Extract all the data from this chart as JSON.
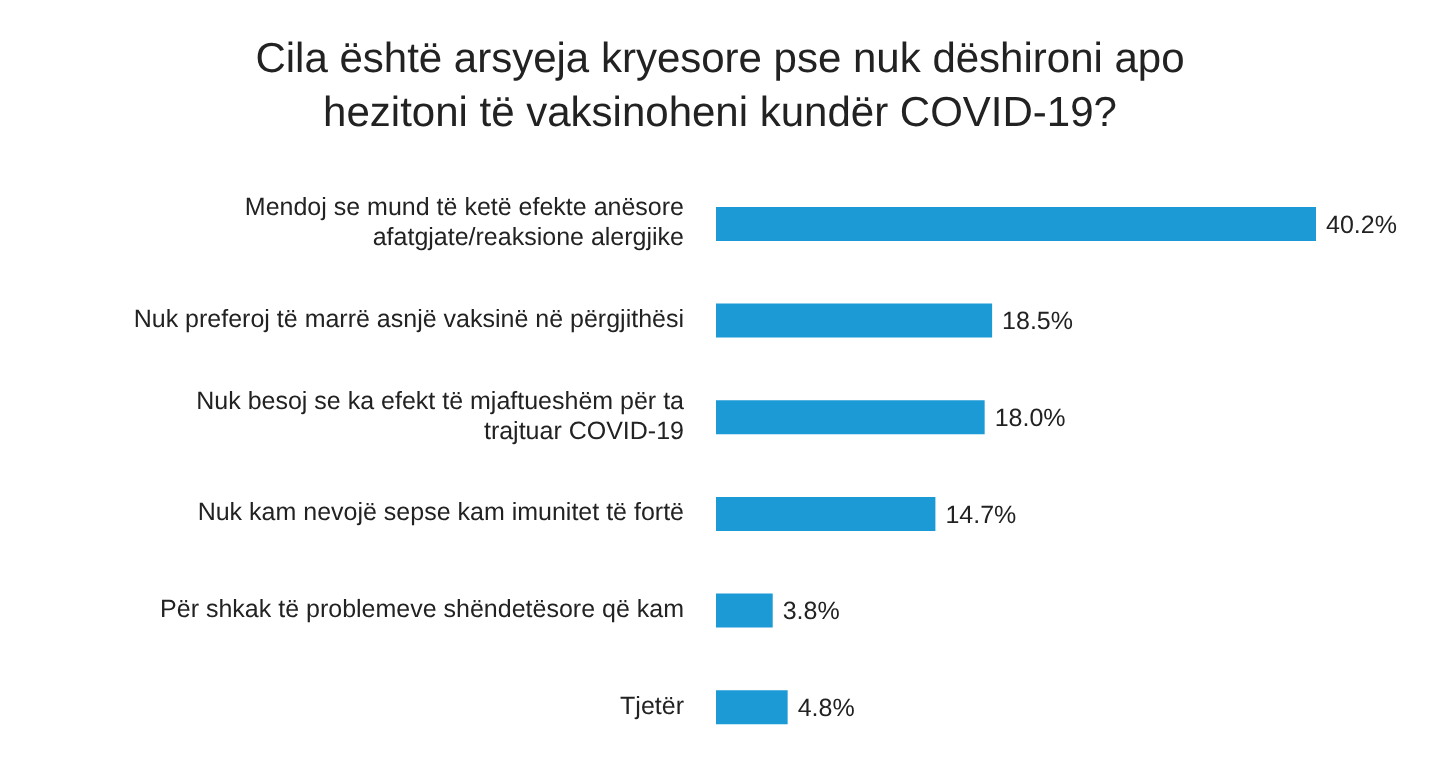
{
  "chart_data": {
    "type": "bar",
    "orientation": "horizontal",
    "title": "Cila është arsyeja kryesore pse nuk dëshironi apo\nhezitoni të vaksinoheni kundër COVID-19?",
    "categories": [
      "Mendoj se mund të ketë efekte anësore\nafatgjate/reaksione alergjike",
      "Nuk preferoj të marrë asnjë vaksinë në përgjithësi",
      "Nuk besoj se ka efekt të mjaftueshëm për ta\ntrajtuar COVID-19",
      "Nuk kam nevojë sepse kam imunitet të fortë",
      "Për shkak të problemeve shëndetësore që kam",
      "Tjetër"
    ],
    "values": [
      40.2,
      18.5,
      18.0,
      14.7,
      3.8,
      4.8
    ],
    "value_labels": [
      "40.2%",
      "18.5%",
      "18.0%",
      "14.7%",
      "3.8%",
      "4.8%"
    ],
    "color": "#1b9ad6"
  }
}
